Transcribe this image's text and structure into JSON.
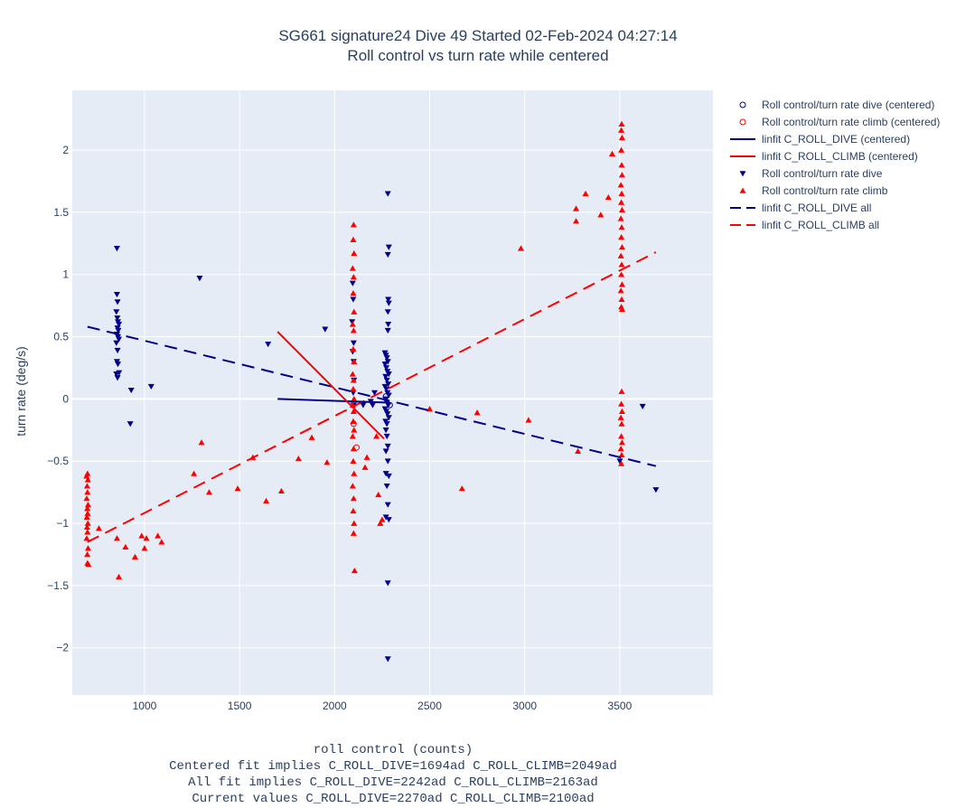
{
  "chart_data": {
    "type": "scatter",
    "title": "SG661 signature24 Dive 49 Started 02-Feb-2024 04:27:14",
    "subtitle": "Roll control vs turn rate while centered",
    "xlabel": "roll control (counts)",
    "ylabel": "turn rate (deg/s)",
    "caption_lines": [
      "Centered fit implies C_ROLL_DIVE=1694ad C_ROLL_CLIMB=2049ad",
      "All fit implies C_ROLL_DIVE=2242ad C_ROLL_CLIMB=2163ad",
      "Current values C_ROLL_DIVE=2270ad C_ROLL_CLIMB=2100ad"
    ],
    "xlim": [
      620,
      3990
    ],
    "ylim": [
      -2.38,
      2.48
    ],
    "xticks": [
      1000,
      1500,
      2000,
      2500,
      3000,
      3500
    ],
    "xtick_labels": [
      "1000",
      "1500",
      "2000",
      "2500",
      "3000",
      "3500"
    ],
    "yticks": [
      -2,
      -1.5,
      -1,
      -0.5,
      0,
      0.5,
      1,
      1.5,
      2
    ],
    "ytick_labels": [
      "−2",
      "−1.5",
      "−1",
      "−0.5",
      "0",
      "0.5",
      "1",
      "1.5",
      "2"
    ],
    "grid": true,
    "legend_position": "right",
    "colors": {
      "dive": "#00008b",
      "climb": "#ff0000",
      "plot_bg": "#e5ecf6",
      "grid": "#ffffff"
    },
    "series": [
      {
        "name": "Roll control/turn rate dive (centered)",
        "kind": "markers",
        "marker": "circle-open",
        "color": "#00008b",
        "points": [
          [
            2270,
            0.02
          ],
          [
            2290,
            -0.05
          ]
        ]
      },
      {
        "name": "Roll control/turn rate climb (centered)",
        "kind": "markers",
        "marker": "circle-open",
        "color": "#ff0000",
        "points": [
          [
            2115,
            -0.39
          ],
          [
            2100,
            -0.2
          ]
        ]
      },
      {
        "name": "linfit C_ROLL_DIVE (centered)",
        "kind": "line",
        "dash": "solid",
        "color": "#00008b",
        "points": [
          [
            1700,
            0.0
          ],
          [
            2290,
            -0.03
          ]
        ]
      },
      {
        "name": "linfit C_ROLL_CLIMB (centered)",
        "kind": "line",
        "dash": "solid",
        "color": "#ff0000",
        "points": [
          [
            1700,
            0.54
          ],
          [
            2260,
            -0.32
          ]
        ]
      },
      {
        "name": "Roll control/turn rate dive",
        "kind": "markers",
        "marker": "triangle-down",
        "color": "#00008b",
        "points": [
          [
            855,
            1.21
          ],
          [
            855,
            0.84
          ],
          [
            858,
            0.78
          ],
          [
            852,
            0.7
          ],
          [
            857,
            0.65
          ],
          [
            860,
            0.62
          ],
          [
            865,
            0.6
          ],
          [
            858,
            0.57
          ],
          [
            862,
            0.55
          ],
          [
            855,
            0.52
          ],
          [
            860,
            0.5
          ],
          [
            865,
            0.48
          ],
          [
            852,
            0.45
          ],
          [
            858,
            0.39
          ],
          [
            855,
            0.3
          ],
          [
            860,
            0.28
          ],
          [
            852,
            0.2
          ],
          [
            866,
            0.21
          ],
          [
            858,
            0.17
          ],
          [
            930,
            0.07
          ],
          [
            1035,
            0.1
          ],
          [
            925,
            -0.2
          ],
          [
            1290,
            0.97
          ],
          [
            1650,
            0.44
          ],
          [
            1950,
            0.56
          ],
          [
            2095,
            0.93
          ],
          [
            2098,
            0.8
          ],
          [
            2092,
            0.62
          ],
          [
            2100,
            0.45
          ],
          [
            2095,
            0.38
          ],
          [
            2100,
            0.3
          ],
          [
            2102,
            0.15
          ],
          [
            2098,
            0.05
          ],
          [
            2100,
            -0.05
          ],
          [
            2150,
            -0.05
          ],
          [
            2190,
            -0.02
          ],
          [
            2200,
            -0.05
          ],
          [
            2210,
            0.05
          ],
          [
            2280,
            1.65
          ],
          [
            2285,
            1.22
          ],
          [
            2280,
            1.16
          ],
          [
            2282,
            0.8
          ],
          [
            2285,
            0.77
          ],
          [
            2280,
            0.7
          ],
          [
            2282,
            0.6
          ],
          [
            2280,
            0.55
          ],
          [
            2265,
            0.37
          ],
          [
            2270,
            0.35
          ],
          [
            2275,
            0.33
          ],
          [
            2280,
            0.3
          ],
          [
            2265,
            0.28
          ],
          [
            2272,
            0.25
          ],
          [
            2278,
            0.22
          ],
          [
            2285,
            0.2
          ],
          [
            2268,
            0.18
          ],
          [
            2275,
            0.15
          ],
          [
            2282,
            0.12
          ],
          [
            2265,
            0.1
          ],
          [
            2272,
            0.08
          ],
          [
            2278,
            0.05
          ],
          [
            2285,
            0.03
          ],
          [
            2268,
            0.0
          ],
          [
            2275,
            -0.03
          ],
          [
            2282,
            -0.05
          ],
          [
            2265,
            -0.08
          ],
          [
            2272,
            -0.1
          ],
          [
            2278,
            -0.12
          ],
          [
            2285,
            -0.15
          ],
          [
            2268,
            -0.18
          ],
          [
            2275,
            -0.2
          ],
          [
            2270,
            -0.25
          ],
          [
            2275,
            -0.3
          ],
          [
            2280,
            -0.38
          ],
          [
            2270,
            -0.42
          ],
          [
            2280,
            -0.5
          ],
          [
            2270,
            -0.6
          ],
          [
            2285,
            -0.62
          ],
          [
            2275,
            -0.7
          ],
          [
            2280,
            -0.85
          ],
          [
            2270,
            -0.95
          ],
          [
            2285,
            -0.97
          ],
          [
            2280,
            -1.48
          ],
          [
            2280,
            -2.09
          ],
          [
            3500,
            -0.5
          ],
          [
            3620,
            -0.06
          ],
          [
            3690,
            -0.73
          ]
        ]
      },
      {
        "name": "Roll control/turn rate climb",
        "kind": "markers",
        "marker": "triangle-up",
        "color": "#ff0000",
        "points": [
          [
            700,
            -0.6
          ],
          [
            695,
            -0.62
          ],
          [
            702,
            -0.65
          ],
          [
            698,
            -0.7
          ],
          [
            700,
            -0.75
          ],
          [
            696,
            -0.8
          ],
          [
            703,
            -0.85
          ],
          [
            699,
            -0.88
          ],
          [
            701,
            -0.92
          ],
          [
            697,
            -0.95
          ],
          [
            702,
            -1.0
          ],
          [
            698,
            -1.03
          ],
          [
            700,
            -1.07
          ],
          [
            696,
            -1.12
          ],
          [
            703,
            -1.2
          ],
          [
            699,
            -1.25
          ],
          [
            700,
            -1.32
          ],
          [
            705,
            -1.33
          ],
          [
            760,
            -1.04
          ],
          [
            855,
            -1.12
          ],
          [
            865,
            -1.43
          ],
          [
            900,
            -1.19
          ],
          [
            950,
            -1.27
          ],
          [
            985,
            -1.1
          ],
          [
            1000,
            -1.2
          ],
          [
            1010,
            -1.12
          ],
          [
            1070,
            -1.1
          ],
          [
            1090,
            -1.15
          ],
          [
            1260,
            -0.6
          ],
          [
            1300,
            -0.35
          ],
          [
            1340,
            -0.75
          ],
          [
            1490,
            -0.72
          ],
          [
            1570,
            -0.47
          ],
          [
            1640,
            -0.82
          ],
          [
            1720,
            -0.74
          ],
          [
            1810,
            -0.48
          ],
          [
            1880,
            -0.31
          ],
          [
            1960,
            -0.51
          ],
          [
            2100,
            1.4
          ],
          [
            2098,
            1.28
          ],
          [
            2102,
            1.17
          ],
          [
            2095,
            1.05
          ],
          [
            2100,
            0.98
          ],
          [
            2098,
            0.85
          ],
          [
            2102,
            0.7
          ],
          [
            2095,
            0.6
          ],
          [
            2100,
            0.55
          ],
          [
            2098,
            0.4
          ],
          [
            2102,
            0.3
          ],
          [
            2095,
            0.2
          ],
          [
            2100,
            0.15
          ],
          [
            2098,
            0.08
          ],
          [
            2102,
            0.0
          ],
          [
            2095,
            -0.05
          ],
          [
            2100,
            -0.1
          ],
          [
            2098,
            -0.18
          ],
          [
            2102,
            -0.25
          ],
          [
            2095,
            -0.3
          ],
          [
            2100,
            -0.4
          ],
          [
            2098,
            -0.5
          ],
          [
            2102,
            -0.6
          ],
          [
            2095,
            -0.7
          ],
          [
            2100,
            -0.8
          ],
          [
            2098,
            -0.9
          ],
          [
            2102,
            -1.0
          ],
          [
            2100,
            -1.08
          ],
          [
            2105,
            -1.38
          ],
          [
            2160,
            -0.55
          ],
          [
            2170,
            -0.47
          ],
          [
            2220,
            -0.3
          ],
          [
            2230,
            -0.77
          ],
          [
            2240,
            -1.0
          ],
          [
            2250,
            -0.97
          ],
          [
            2500,
            -0.08
          ],
          [
            2670,
            -0.72
          ],
          [
            2750,
            -0.11
          ],
          [
            2980,
            1.21
          ],
          [
            3020,
            -0.17
          ],
          [
            3280,
            -0.42
          ],
          [
            3270,
            1.53
          ],
          [
            3270,
            1.43
          ],
          [
            3320,
            1.65
          ],
          [
            3400,
            1.48
          ],
          [
            3440,
            1.62
          ],
          [
            3460,
            1.97
          ],
          [
            3510,
            2.21
          ],
          [
            3508,
            2.16
          ],
          [
            3512,
            2.1
          ],
          [
            3508,
            2.0
          ],
          [
            3510,
            1.88
          ],
          [
            3512,
            1.8
          ],
          [
            3506,
            1.72
          ],
          [
            3510,
            1.65
          ],
          [
            3508,
            1.58
          ],
          [
            3512,
            1.52
          ],
          [
            3506,
            1.45
          ],
          [
            3510,
            1.38
          ],
          [
            3508,
            1.3
          ],
          [
            3512,
            1.22
          ],
          [
            3506,
            1.15
          ],
          [
            3510,
            1.08
          ],
          [
            3508,
            1.0
          ],
          [
            3512,
            0.92
          ],
          [
            3506,
            0.87
          ],
          [
            3510,
            0.8
          ],
          [
            3508,
            0.74
          ],
          [
            3512,
            0.72
          ],
          [
            3510,
            0.06
          ],
          [
            3508,
            -0.04
          ],
          [
            3512,
            -0.1
          ],
          [
            3506,
            -0.15
          ],
          [
            3510,
            -0.2
          ],
          [
            3508,
            -0.3
          ],
          [
            3512,
            -0.35
          ],
          [
            3506,
            -0.4
          ],
          [
            3510,
            -0.45
          ],
          [
            3508,
            -0.52
          ]
        ]
      },
      {
        "name": "linfit C_ROLL_DIVE all",
        "kind": "line",
        "dash": "dash",
        "color": "#00008b",
        "points": [
          [
            700,
            0.58
          ],
          [
            3690,
            -0.54
          ]
        ]
      },
      {
        "name": "linfit C_ROLL_CLIMB all",
        "kind": "line",
        "dash": "dash",
        "color": "#ff0000",
        "points": [
          [
            700,
            -1.15
          ],
          [
            3690,
            1.18
          ]
        ]
      }
    ]
  }
}
